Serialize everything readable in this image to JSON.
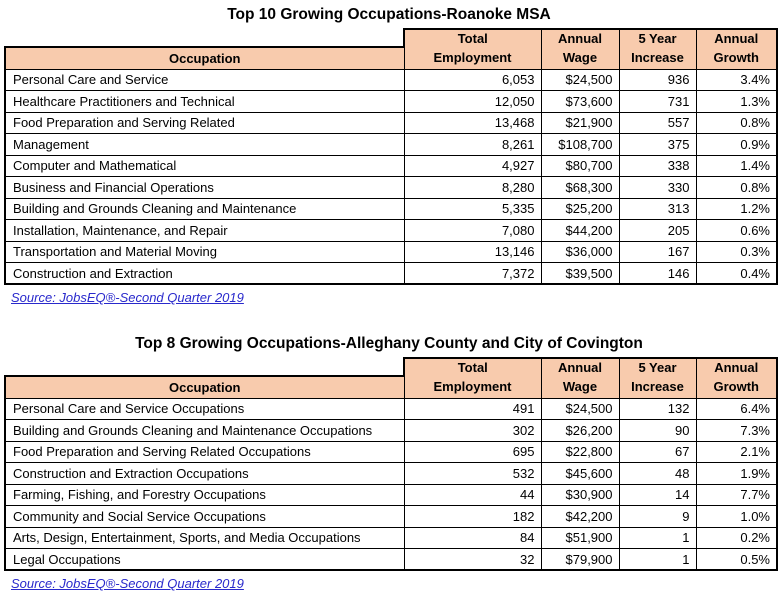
{
  "colors": {
    "header_fill": "#F8CBAD",
    "border": "#000000",
    "link": "#2929CC",
    "text": "#000000",
    "background": "#FFFFFF"
  },
  "column_keys": [
    "occupation",
    "total_employment",
    "annual_wage",
    "five_year_increase",
    "annual_growth"
  ],
  "tables": [
    {
      "title": "Top 10 Growing Occupations-Roanoke MSA",
      "header": {
        "occupation": "Occupation",
        "total_employment": {
          "line1": "Total",
          "line2": "Employment"
        },
        "annual_wage": {
          "line1": "Annual",
          "line2": "Wage"
        },
        "five_year_increase": {
          "line1": "5 Year",
          "line2": "Increase"
        },
        "annual_growth": {
          "line1": "Annual",
          "line2": "Growth"
        }
      },
      "rows": [
        {
          "occupation": "Personal Care and Service",
          "total_employment": "6,053",
          "annual_wage": "$24,500",
          "five_year_increase": "936",
          "annual_growth": "3.4%"
        },
        {
          "occupation": "Healthcare Practitioners and Technical",
          "total_employment": "12,050",
          "annual_wage": "$73,600",
          "five_year_increase": "731",
          "annual_growth": "1.3%"
        },
        {
          "occupation": "Food Preparation and Serving Related",
          "total_employment": "13,468",
          "annual_wage": "$21,900",
          "five_year_increase": "557",
          "annual_growth": "0.8%"
        },
        {
          "occupation": "Management",
          "total_employment": "8,261",
          "annual_wage": "$108,700",
          "five_year_increase": "375",
          "annual_growth": "0.9%"
        },
        {
          "occupation": "Computer and Mathematical",
          "total_employment": "4,927",
          "annual_wage": "$80,700",
          "five_year_increase": "338",
          "annual_growth": "1.4%"
        },
        {
          "occupation": "Business and Financial Operations",
          "total_employment": "8,280",
          "annual_wage": "$68,300",
          "five_year_increase": "330",
          "annual_growth": "0.8%"
        },
        {
          "occupation": "Building and Grounds Cleaning and Maintenance",
          "total_employment": "5,335",
          "annual_wage": "$25,200",
          "five_year_increase": "313",
          "annual_growth": "1.2%"
        },
        {
          "occupation": "Installation, Maintenance, and Repair",
          "total_employment": "7,080",
          "annual_wage": "$44,200",
          "five_year_increase": "205",
          "annual_growth": "0.6%"
        },
        {
          "occupation": "Transportation and Material Moving",
          "total_employment": "13,146",
          "annual_wage": "$36,000",
          "five_year_increase": "167",
          "annual_growth": "0.3%"
        },
        {
          "occupation": "Construction and Extraction",
          "total_employment": "7,372",
          "annual_wage": "$39,500",
          "five_year_increase": "146",
          "annual_growth": "0.4%"
        }
      ],
      "source": "Source: JobsEQ®-Second Quarter 2019"
    },
    {
      "title": "Top 8 Growing Occupations-Alleghany County and City of Covington",
      "header": {
        "occupation": "Occupation",
        "total_employment": {
          "line1": "Total",
          "line2": "Employment"
        },
        "annual_wage": {
          "line1": "Annual",
          "line2": "Wage"
        },
        "five_year_increase": {
          "line1": "5 Year",
          "line2": "Increase"
        },
        "annual_growth": {
          "line1": "Annual",
          "line2": "Growth"
        }
      },
      "rows": [
        {
          "occupation": "Personal Care and Service Occupations",
          "total_employment": "491",
          "annual_wage": "$24,500",
          "five_year_increase": "132",
          "annual_growth": "6.4%"
        },
        {
          "occupation": "Building and Grounds Cleaning and Maintenance Occupations",
          "total_employment": "302",
          "annual_wage": "$26,200",
          "five_year_increase": "90",
          "annual_growth": "7.3%"
        },
        {
          "occupation": "Food Preparation and Serving Related Occupations",
          "total_employment": "695",
          "annual_wage": "$22,800",
          "five_year_increase": "67",
          "annual_growth": "2.1%"
        },
        {
          "occupation": "Construction and Extraction Occupations",
          "total_employment": "532",
          "annual_wage": "$45,600",
          "five_year_increase": "48",
          "annual_growth": "1.9%"
        },
        {
          "occupation": "Farming, Fishing, and Forestry Occupations",
          "total_employment": "44",
          "annual_wage": "$30,900",
          "five_year_increase": "14",
          "annual_growth": "7.7%"
        },
        {
          "occupation": "Community and Social Service Occupations",
          "total_employment": "182",
          "annual_wage": "$42,200",
          "five_year_increase": "9",
          "annual_growth": "1.0%"
        },
        {
          "occupation": "Arts, Design, Entertainment, Sports, and Media Occupations",
          "total_employment": "84",
          "annual_wage": "$51,900",
          "five_year_increase": "1",
          "annual_growth": "0.2%"
        },
        {
          "occupation": "Legal Occupations",
          "total_employment": "32",
          "annual_wage": "$79,900",
          "five_year_increase": "1",
          "annual_growth": "0.5%"
        }
      ],
      "source": "Source: JobsEQ®-Second Quarter 2019"
    }
  ]
}
